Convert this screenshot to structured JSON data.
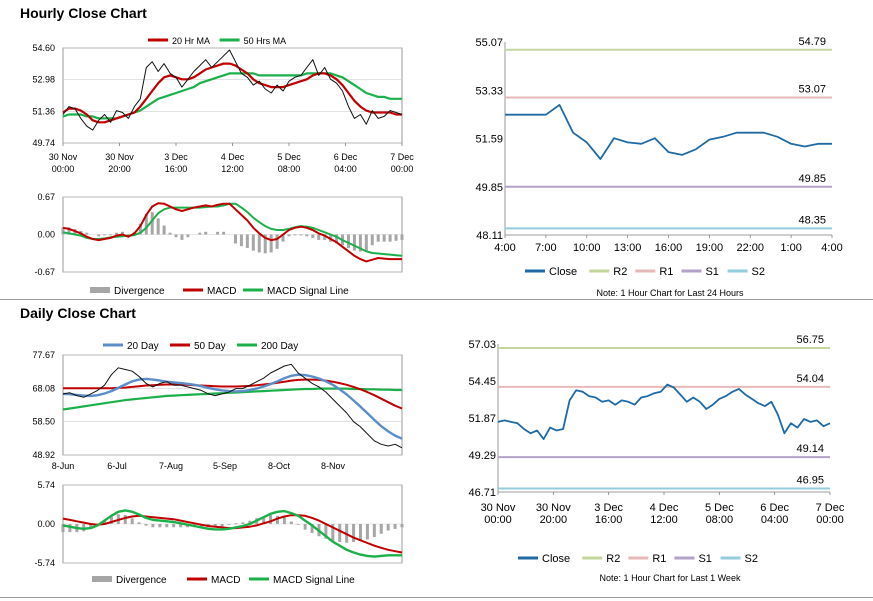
{
  "titles": {
    "hourly": "Hourly Close Chart",
    "daily": "Daily Close Chart"
  },
  "colors": {
    "close": "#1f6aa5",
    "ma_red": "#c00000",
    "ma_green": "#1cb04b",
    "ma_blue": "#5b8dc8",
    "R2": "#c3d69b",
    "R1": "#e6b9b8",
    "S1": "#b3a2c7",
    "S2": "#93cddd",
    "hist": "#a6a6a6"
  },
  "chart_data": [
    {
      "id": "hourly-price",
      "type": "line",
      "legend": [
        "20 Hr MA",
        "50 Hrs MA"
      ],
      "y_ticks": [
        "54.60",
        "52.98",
        "51.36",
        "49.74"
      ],
      "ylim": [
        49.74,
        54.6
      ],
      "x_ticks": [
        [
          "30 Nov",
          "00:00"
        ],
        [
          "30 Nov",
          "20:00"
        ],
        [
          "3 Dec",
          "16:00"
        ],
        [
          "4 Dec",
          "12:00"
        ],
        [
          "5 Dec",
          "08:00"
        ],
        [
          "6 Dec",
          "04:00"
        ],
        [
          "7 Dec",
          "00:00"
        ]
      ],
      "series": [
        {
          "name": "Close",
          "values": [
            51.2,
            51.6,
            51.5,
            51.0,
            50.6,
            50.4,
            50.9,
            51.2,
            50.8,
            51.4,
            51.3,
            51.0,
            51.6,
            52.0,
            53.6,
            53.9,
            53.4,
            53.8,
            53.3,
            53.1,
            52.6,
            53.0,
            53.4,
            53.7,
            54.0,
            53.6,
            53.9,
            54.2,
            54.5,
            53.9,
            53.3,
            53.1,
            52.7,
            52.9,
            52.5,
            52.3,
            52.7,
            52.4,
            52.9,
            53.1,
            53.2,
            53.6,
            54.0,
            53.2,
            53.6,
            53.0,
            52.8,
            52.4,
            51.6,
            51.0,
            51.2,
            50.7,
            51.4,
            51.0,
            51.1,
            51.4,
            51.3,
            51.2
          ]
        },
        {
          "name": "20 Hr MA",
          "values": [
            51.3,
            51.5,
            51.5,
            51.4,
            51.2,
            50.9,
            50.8,
            50.8,
            50.9,
            51.0,
            51.1,
            51.2,
            51.3,
            51.6,
            52.0,
            52.4,
            52.8,
            53.1,
            53.2,
            53.1,
            53.0,
            53.0,
            53.1,
            53.3,
            53.5,
            53.6,
            53.7,
            53.8,
            53.8,
            53.7,
            53.5,
            53.3,
            53.0,
            52.8,
            52.7,
            52.6,
            52.6,
            52.6,
            52.7,
            52.8,
            52.9,
            53.0,
            53.2,
            53.3,
            53.3,
            53.2,
            53.0,
            52.7,
            52.3,
            51.9,
            51.6,
            51.4,
            51.3,
            51.3,
            51.3,
            51.3,
            51.2,
            51.2
          ]
        },
        {
          "name": "50 Hrs MA",
          "values": [
            51.1,
            51.2,
            51.2,
            51.2,
            51.1,
            51.1,
            51.0,
            51.0,
            51.0,
            51.0,
            51.1,
            51.2,
            51.3,
            51.4,
            51.6,
            51.8,
            52.0,
            52.1,
            52.2,
            52.3,
            52.4,
            52.5,
            52.6,
            52.8,
            52.9,
            53.0,
            53.1,
            53.2,
            53.3,
            53.3,
            53.3,
            53.3,
            53.3,
            53.2,
            53.2,
            53.2,
            53.2,
            53.2,
            53.2,
            53.2,
            53.2,
            53.3,
            53.3,
            53.3,
            53.3,
            53.3,
            53.2,
            53.1,
            52.9,
            52.7,
            52.5,
            52.3,
            52.2,
            52.1,
            52.1,
            52.0,
            52.0,
            52.0
          ]
        }
      ]
    },
    {
      "id": "hourly-macd",
      "type": "line",
      "legend": [
        "Divergence",
        "MACD",
        "MACD Signal Line"
      ],
      "y_ticks": [
        "0.67",
        "0.00",
        "-0.67"
      ],
      "ylim": [
        -0.67,
        0.67
      ],
      "series": [
        {
          "name": "MACD",
          "values": [
            0.12,
            0.1,
            0.06,
            0.02,
            -0.04,
            -0.08,
            -0.1,
            -0.08,
            -0.06,
            -0.02,
            0.0,
            -0.04,
            0.02,
            0.15,
            0.35,
            0.5,
            0.56,
            0.55,
            0.5,
            0.45,
            0.42,
            0.45,
            0.48,
            0.5,
            0.52,
            0.5,
            0.53,
            0.55,
            0.55,
            0.45,
            0.35,
            0.25,
            0.12,
            0.02,
            -0.06,
            -0.1,
            -0.08,
            0.0,
            0.08,
            0.12,
            0.14,
            0.12,
            0.08,
            0.02,
            -0.02,
            -0.08,
            -0.14,
            -0.22,
            -0.3,
            -0.38,
            -0.44,
            -0.48,
            -0.45,
            -0.42,
            -0.43,
            -0.44,
            -0.44,
            -0.44
          ]
        },
        {
          "name": "MACD Signal Line",
          "values": [
            0.04,
            0.02,
            0.0,
            -0.02,
            -0.06,
            -0.08,
            -0.08,
            -0.07,
            -0.05,
            -0.04,
            -0.03,
            -0.02,
            -0.01,
            0.03,
            0.12,
            0.25,
            0.38,
            0.45,
            0.48,
            0.48,
            0.48,
            0.48,
            0.48,
            0.48,
            0.49,
            0.5,
            0.5,
            0.52,
            0.55,
            0.55,
            0.48,
            0.4,
            0.3,
            0.22,
            0.15,
            0.1,
            0.08,
            0.08,
            0.1,
            0.13,
            0.15,
            0.14,
            0.12,
            0.08,
            0.04,
            0.0,
            -0.04,
            -0.1,
            -0.15,
            -0.2,
            -0.25,
            -0.3,
            -0.33,
            -0.34,
            -0.35,
            -0.36,
            -0.37,
            -0.38
          ]
        }
      ]
    },
    {
      "id": "hourly-24h",
      "type": "line",
      "y_ticks": [
        "55.07",
        "53.33",
        "51.59",
        "49.85",
        "48.11"
      ],
      "ylim": [
        48.11,
        55.07
      ],
      "x_ticks": [
        "4:00",
        "7:00",
        "10:00",
        "13:00",
        "16:00",
        "19:00",
        "22:00",
        "1:00",
        "4:00"
      ],
      "levels": [
        {
          "name": "R2",
          "value": 54.79,
          "label": "54.79"
        },
        {
          "name": "R1",
          "value": 53.07,
          "label": "53.07"
        },
        {
          "name": "S1",
          "value": 49.85,
          "label": "49.85"
        },
        {
          "name": "S2",
          "value": 48.35,
          "label": "48.35"
        }
      ],
      "legend": [
        "Close",
        "R2",
        "R1",
        "S1",
        "S2"
      ],
      "note": "Note: 1 Hour Chart for Last 24 Hours",
      "series": [
        {
          "name": "Close",
          "values": [
            52.45,
            52.45,
            52.45,
            52.45,
            52.8,
            51.8,
            51.45,
            50.85,
            51.6,
            51.45,
            51.4,
            51.6,
            51.1,
            51.0,
            51.2,
            51.55,
            51.65,
            51.8,
            51.8,
            51.8,
            51.65,
            51.4,
            51.3,
            51.4,
            51.4
          ]
        }
      ]
    },
    {
      "id": "daily-price",
      "type": "line",
      "legend": [
        "20 Day",
        "50 Day",
        "200 Day"
      ],
      "y_ticks": [
        "77.67",
        "68.08",
        "58.50",
        "48.92"
      ],
      "ylim": [
        48.92,
        77.67
      ],
      "x_ticks": [
        "8-Jun",
        "6-Jul",
        "7-Aug",
        "5-Sep",
        "8-Oct",
        "8-Nov"
      ],
      "series": [
        {
          "name": "Close",
          "values": [
            66.5,
            66.8,
            66.0,
            65.5,
            66.5,
            67.5,
            69.0,
            72.0,
            74.0,
            73.5,
            73.0,
            71.5,
            69.5,
            68.5,
            69.5,
            70.0,
            69.0,
            69.0,
            68.5,
            68.0,
            67.5,
            66.5,
            66.0,
            66.5,
            67.0,
            68.0,
            68.0,
            69.0,
            70.0,
            71.0,
            72.5,
            73.5,
            74.5,
            75.0,
            72.5,
            71.0,
            69.5,
            68.5,
            67.0,
            65.0,
            63.0,
            61.0,
            58.5,
            57.0,
            55.0,
            53.0,
            52.0,
            51.5,
            52.0,
            51.0
          ]
        },
        {
          "name": "20 Day",
          "values": [
            66.5,
            66.4,
            66.2,
            66.0,
            65.9,
            66.1,
            66.6,
            67.3,
            68.2,
            69.2,
            70.1,
            70.6,
            70.8,
            70.6,
            70.3,
            70.0,
            69.8,
            69.6,
            69.4,
            69.1,
            68.7,
            68.2,
            67.8,
            67.5,
            67.3,
            67.2,
            67.3,
            67.6,
            68.0,
            68.6,
            69.3,
            70.1,
            71.0,
            71.7,
            72.0,
            71.9,
            71.5,
            70.9,
            70.1,
            69.1,
            67.8,
            66.3,
            64.6,
            62.8,
            60.9,
            59.0,
            57.2,
            55.7,
            54.5,
            53.6
          ]
        },
        {
          "name": "50 Day",
          "values": [
            68.1,
            68.1,
            68.1,
            68.1,
            68.1,
            68.1,
            68.1,
            68.1,
            68.2,
            68.3,
            68.5,
            68.7,
            68.9,
            69.0,
            69.1,
            69.2,
            69.2,
            69.2,
            69.1,
            69.0,
            68.9,
            68.8,
            68.7,
            68.6,
            68.6,
            68.6,
            68.7,
            68.8,
            69.0,
            69.2,
            69.4,
            69.7,
            70.0,
            70.3,
            70.5,
            70.6,
            70.6,
            70.5,
            70.3,
            70.0,
            69.6,
            69.1,
            68.5,
            67.8,
            67.0,
            66.1,
            65.1,
            64.1,
            63.1,
            62.3
          ]
        },
        {
          "name": "200 Day",
          "values": [
            62.0,
            62.3,
            62.6,
            62.9,
            63.2,
            63.5,
            63.8,
            64.1,
            64.4,
            64.7,
            64.9,
            65.1,
            65.3,
            65.5,
            65.7,
            65.9,
            66.0,
            66.1,
            66.2,
            66.3,
            66.4,
            66.5,
            66.6,
            66.7,
            66.8,
            66.9,
            67.0,
            67.1,
            67.2,
            67.3,
            67.4,
            67.5,
            67.6,
            67.7,
            67.8,
            67.9,
            67.9,
            68.0,
            68.0,
            68.0,
            68.0,
            68.0,
            67.9,
            67.9,
            67.8,
            67.8,
            67.7,
            67.7,
            67.6,
            67.6
          ]
        }
      ]
    },
    {
      "id": "daily-macd",
      "type": "line",
      "legend": [
        "Divergence",
        "MACD",
        "MACD Signal Line"
      ],
      "y_ticks": [
        "5.74",
        "0.00",
        "-5.74"
      ],
      "ylim": [
        -5.74,
        5.74
      ],
      "series": [
        {
          "name": "MACD",
          "values": [
            -0.2,
            -0.4,
            -0.6,
            -0.7,
            -0.6,
            -0.2,
            0.5,
            1.2,
            1.8,
            2.0,
            1.8,
            1.4,
            0.9,
            0.6,
            0.5,
            0.4,
            0.3,
            0.1,
            -0.1,
            -0.3,
            -0.5,
            -0.7,
            -0.8,
            -0.8,
            -0.7,
            -0.5,
            -0.3,
            0.0,
            0.5,
            1.0,
            1.5,
            1.8,
            1.9,
            1.6,
            1.2,
            0.5,
            -0.2,
            -1.0,
            -1.8,
            -2.6,
            -3.2,
            -3.8,
            -4.2,
            -4.5,
            -4.7,
            -4.8,
            -4.7,
            -4.6,
            -4.6,
            -4.6
          ]
        },
        {
          "name": "MACD Signal Line",
          "values": [
            0.8,
            0.6,
            0.4,
            0.2,
            0.0,
            -0.1,
            0.0,
            0.3,
            0.6,
            0.9,
            1.1,
            1.2,
            1.1,
            1.0,
            0.9,
            0.8,
            0.7,
            0.5,
            0.3,
            0.1,
            -0.1,
            -0.3,
            -0.4,
            -0.5,
            -0.6,
            -0.6,
            -0.5,
            -0.4,
            -0.2,
            0.1,
            0.4,
            0.8,
            1.1,
            1.3,
            1.3,
            1.2,
            0.9,
            0.5,
            0.0,
            -0.5,
            -1.0,
            -1.5,
            -2.0,
            -2.4,
            -2.8,
            -3.2,
            -3.5,
            -3.8,
            -4.0,
            -4.2
          ]
        }
      ]
    },
    {
      "id": "daily-week",
      "type": "line",
      "y_ticks": [
        "57.03",
        "54.45",
        "51.87",
        "49.29",
        "46.71"
      ],
      "ylim": [
        46.71,
        57.03
      ],
      "x_ticks": [
        [
          "30 Nov",
          "00:00"
        ],
        [
          "30 Nov",
          "20:00"
        ],
        [
          "3 Dec",
          "16:00"
        ],
        [
          "4 Dec",
          "12:00"
        ],
        [
          "5 Dec",
          "08:00"
        ],
        [
          "6 Dec",
          "04:00"
        ],
        [
          "7 Dec",
          "00:00"
        ]
      ],
      "levels": [
        {
          "name": "R2",
          "value": 56.75,
          "label": "56.75"
        },
        {
          "name": "R1",
          "value": 54.04,
          "label": "54.04"
        },
        {
          "name": "S1",
          "value": 49.14,
          "label": "49.14"
        },
        {
          "name": "S2",
          "value": 46.95,
          "label": "46.95"
        }
      ],
      "legend": [
        "Close",
        "R2",
        "R1",
        "S1",
        "S2"
      ],
      "note": "Note: 1 Hour Chart for Last 1 Week",
      "series": [
        {
          "name": "Close",
          "values": [
            51.6,
            51.7,
            51.6,
            51.5,
            51.1,
            50.8,
            51.0,
            50.4,
            51.2,
            51.0,
            51.1,
            53.1,
            53.8,
            53.7,
            53.4,
            53.3,
            53.0,
            53.1,
            52.8,
            53.1,
            53.0,
            52.8,
            53.3,
            53.4,
            53.6,
            53.7,
            54.2,
            54.0,
            53.5,
            53.0,
            53.3,
            53.0,
            52.5,
            52.8,
            53.2,
            53.4,
            53.7,
            53.9,
            53.5,
            53.2,
            52.9,
            52.7,
            53.0,
            52.1,
            50.8,
            51.5,
            51.2,
            51.8,
            51.6,
            51.7,
            51.3,
            51.5
          ]
        }
      ]
    }
  ]
}
